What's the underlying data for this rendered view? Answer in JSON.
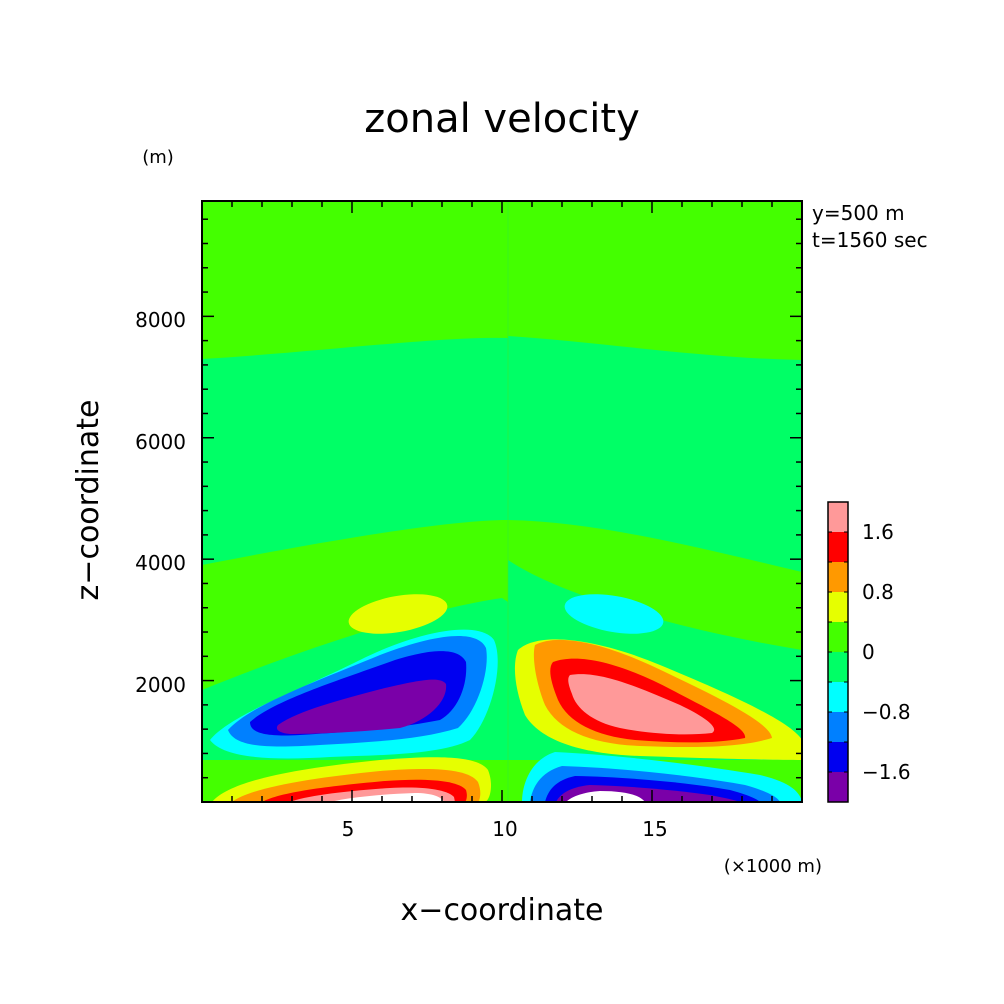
{
  "chart_data": {
    "type": "heatmap",
    "title": "zonal velocity",
    "xlabel": "x−coordinate",
    "ylabel": "z−coordinate",
    "x_unit": "(×1000 m)",
    "y_unit": "(m)",
    "annotations": [
      "y=500 m",
      "t=1560 sec"
    ],
    "xlim": [
      0,
      20
    ],
    "ylim": [
      0,
      9900
    ],
    "x_ticks": [
      5,
      10,
      15
    ],
    "x_tick_labels": [
      "5",
      "10",
      "15"
    ],
    "y_ticks": [
      2000,
      4000,
      6000,
      8000
    ],
    "y_tick_labels": [
      "2000",
      "4000",
      "6000",
      "8000"
    ],
    "grid": false,
    "colorbar": {
      "levels": [
        -2.4,
        -1.6,
        -1.2,
        -0.8,
        -0.4,
        0,
        0.4,
        0.8,
        1.2,
        1.6,
        2.4
      ],
      "colors": [
        "#7a00a8",
        "#0000f0",
        "#0080ff",
        "#00ffff",
        "#00ff66",
        "#44ff00",
        "#e6ff00",
        "#ff9900",
        "#ff0000",
        "#ff9999"
      ],
      "tick_values": [
        -1.6,
        -0.8,
        0,
        0.8,
        1.6
      ],
      "tick_labels": [
        "−1.6",
        "−0.8",
        "0",
        "0.8",
        "1.6"
      ]
    },
    "features": [
      {
        "sign": "negative",
        "value_range": [
          -2.4,
          -1.6
        ],
        "x_center": 6.3,
        "z_center": 1600,
        "note": "upper-left lobe"
      },
      {
        "sign": "positive",
        "value_range": [
          1.6,
          2.4
        ],
        "x_center": 14.2,
        "z_center": 1500,
        "note": "upper-right lobe"
      },
      {
        "sign": "positive",
        "value_range": [
          1.6,
          2.4
        ],
        "x_center": 6.8,
        "z_center": 150,
        "note": "lower-left near surface"
      },
      {
        "sign": "negative",
        "value_range": [
          -2.4,
          -1.6
        ],
        "x_center": 14.5,
        "z_center": 150,
        "note": "lower-right near surface"
      },
      {
        "sign": "positive",
        "value_range": [
          0.4,
          0.8
        ],
        "x_center": 6.3,
        "z_center": 3100
      },
      {
        "sign": "negative",
        "value_range": [
          -0.8,
          -0.4
        ],
        "x_center": 13.8,
        "z_center": 3100
      }
    ]
  }
}
